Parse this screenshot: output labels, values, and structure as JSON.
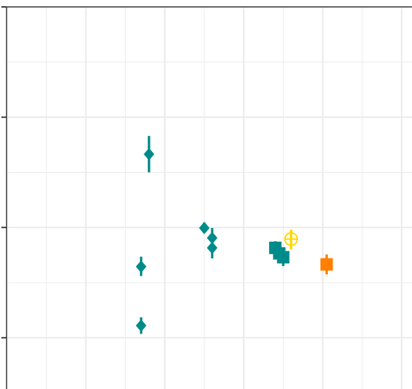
{
  "chart_data": {
    "type": "scatter",
    "title": "",
    "xlabel": "",
    "ylabel": "",
    "xlim": [
      0,
      1
    ],
    "ylim": [
      0,
      1
    ],
    "grid": true,
    "point_estimates_with_error_bars": true,
    "series": [
      {
        "marker": "diamond",
        "color": "#008b8b",
        "points": [
          {
            "x": 0.36,
            "y": 0.733,
            "y_low": 0.7,
            "y_high": 0.766
          },
          {
            "x": 0.34,
            "y": 0.529,
            "y_low": 0.512,
            "y_high": 0.547
          },
          {
            "x": 0.34,
            "y": 0.422,
            "y_low": 0.407,
            "y_high": 0.437
          },
          {
            "x": 0.5,
            "y": 0.599,
            "y_low": 0.59,
            "y_high": 0.609
          },
          {
            "x": 0.52,
            "y": 0.581,
            "y_low": 0.566,
            "y_high": 0.599
          },
          {
            "x": 0.52,
            "y": 0.563,
            "y_low": 0.544,
            "y_high": 0.58
          }
        ]
      },
      {
        "marker": "square",
        "color": "#008b8b",
        "points": [
          {
            "x": 0.68,
            "y": 0.563,
            "y_low": 0.552,
            "y_high": 0.575
          },
          {
            "x": 0.69,
            "y": 0.553,
            "y_low": 0.54,
            "y_high": 0.567
          },
          {
            "x": 0.7,
            "y": 0.546,
            "y_low": 0.53,
            "y_high": 0.56
          }
        ]
      },
      {
        "marker": "circle-plus",
        "color": "#ffd700",
        "points": [
          {
            "x": 0.72,
            "y": 0.579,
            "y_low": 0.56,
            "y_high": 0.596
          }
        ]
      },
      {
        "marker": "square",
        "color": "#ff7f00",
        "points": [
          {
            "x": 0.81,
            "y": 0.533,
            "y_low": 0.515,
            "y_high": 0.551
          }
        ]
      }
    ]
  }
}
